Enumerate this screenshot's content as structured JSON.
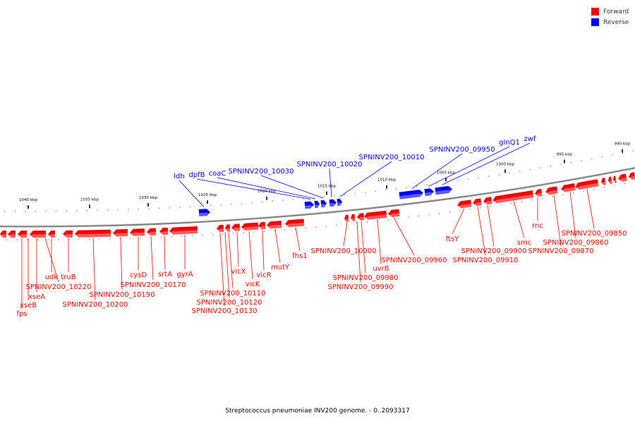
{
  "legend": [
    {
      "label": "Forward",
      "color": "#ff0000"
    },
    {
      "label": "Reverse",
      "color": "#0000ff"
    }
  ],
  "caption": "Streptococcus pneumoniae INV200 genome. - 0..2093317",
  "colors": {
    "forward": "#ff0000",
    "reverse": "#0000ff",
    "backbone": "#808080"
  },
  "scale_labels": [
    "1040 kbp",
    "1035 kbp",
    "1030 kbp",
    "1025 kbp",
    "1020 kbp",
    "1015 kbp",
    "1010 kbp",
    "1005 kbp",
    "1000 kbp",
    "995 kbp",
    "990 kbp"
  ],
  "forward_labels": [
    "fps",
    "xseB",
    "xseA",
    "SPNINV200_10220",
    "udk",
    "truB",
    "SPNINV200_10200",
    "SPNINV200_10190",
    "cysD",
    "SPNINV200_10170",
    "srtA",
    "gyrA",
    "SPNINV200_10130",
    "SPNINV200_10120",
    "SPNINV200_10110",
    "vicX",
    "vicK",
    "vicR",
    "mutY",
    "fhs1",
    "SPNINV200_10000",
    "SPNINV200_09990",
    "SPNINV200_09980",
    "uvrB",
    "SPNINV200_09960",
    "ftsY",
    "SPNINV200_09910",
    "SPNINV200_09900",
    "smc",
    "rnc",
    "SPNINV200_09870",
    "SPNINV200_09860",
    "SPNINV200_09850"
  ],
  "reverse_labels": [
    "ldh",
    "dpfB",
    "coaC",
    "SPNINV200_10030",
    "SPNINV200_10020",
    "SPNINV200_10010",
    "SPNINV200_09950",
    "glnQ1",
    "zwf"
  ]
}
